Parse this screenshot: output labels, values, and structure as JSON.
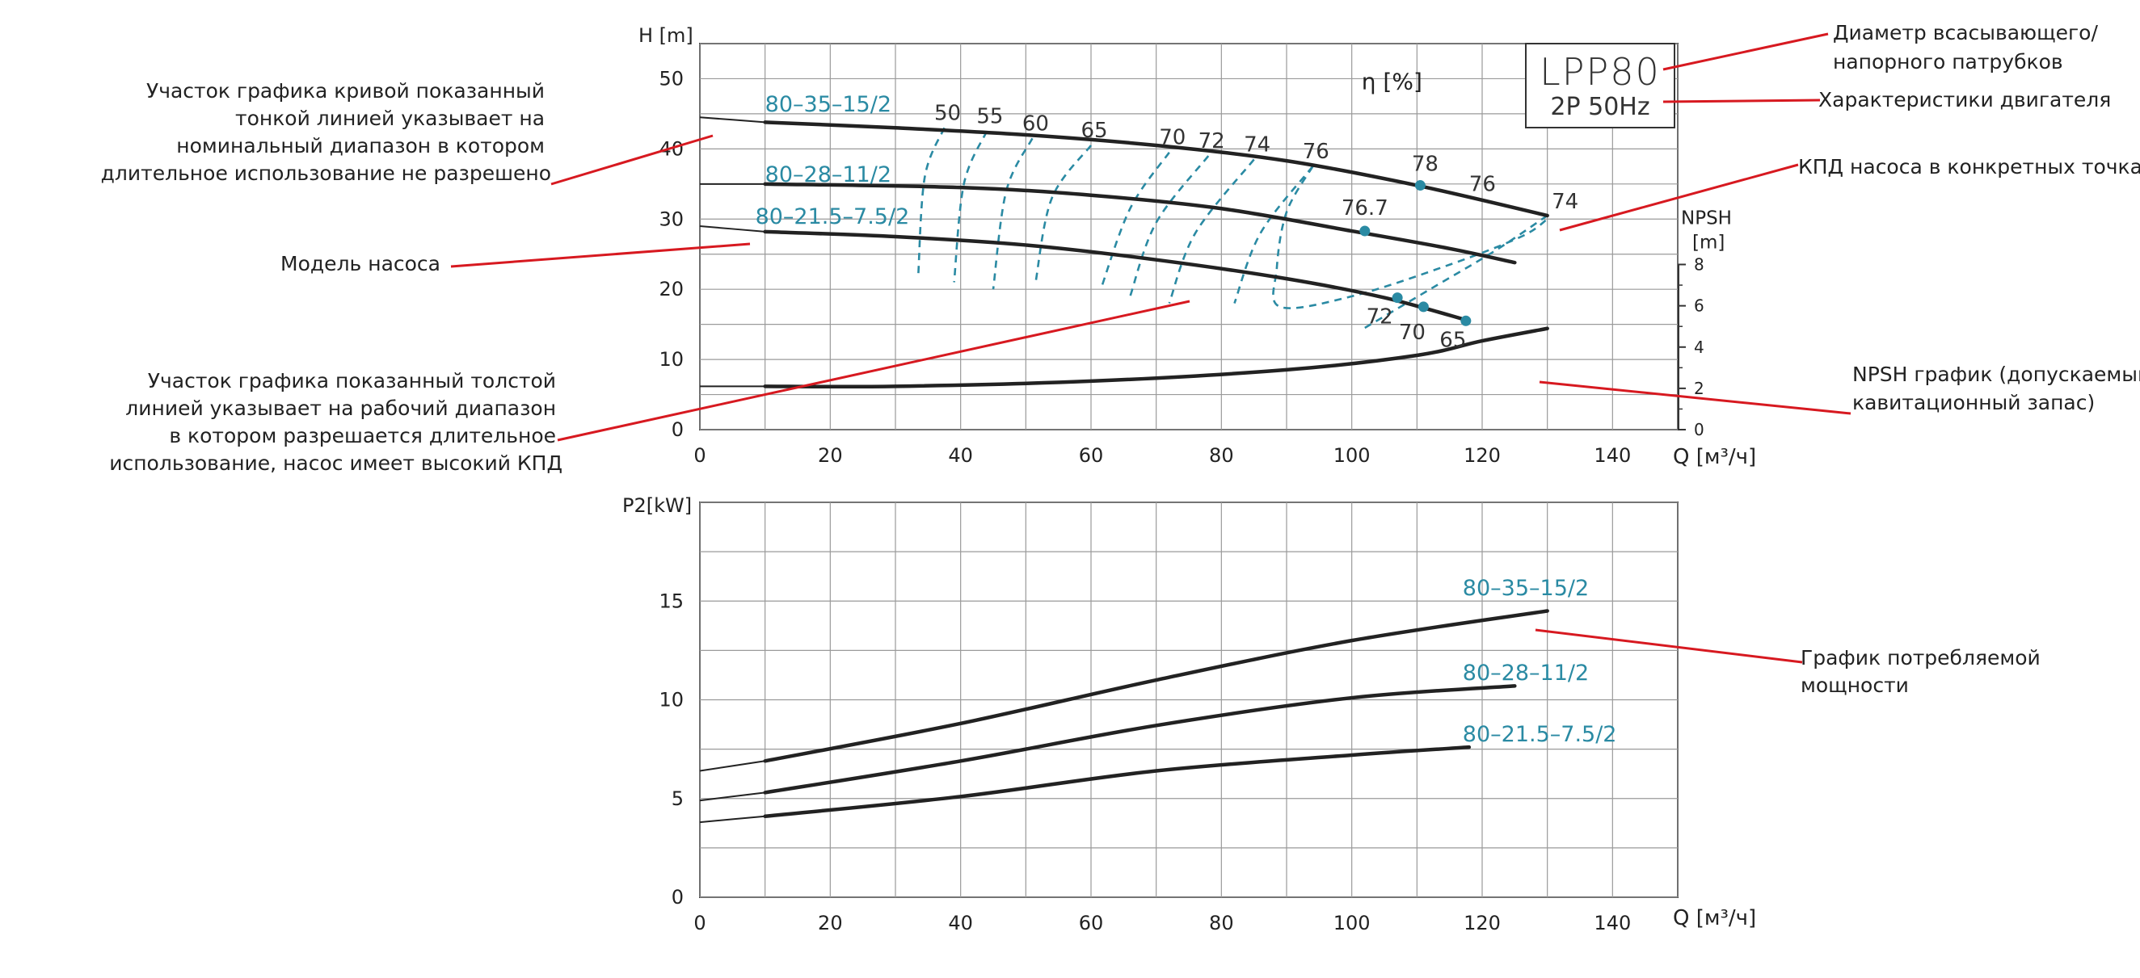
{
  "colors": {
    "curve": "#222222",
    "grid": "#9a9a9a",
    "teal": "#2a8aa3",
    "annotation": "#d71920",
    "text": "#222222"
  },
  "model_box": {
    "model": "LPP80",
    "motor": "2P  50Hz"
  },
  "annotations": {
    "diameter": [
      "Диаметр всасывающего/",
      "напорного патрубков"
    ],
    "motor": [
      "Характеристики двигателя"
    ],
    "kpd_points": [
      "КПД насоса в конкретных точках"
    ],
    "npsh_graph": [
      "NPSH график (допускаемый",
      "кавитационный запас)"
    ],
    "thin_line": [
      "Участок графика кривой показанный",
      "тонкой линией указывает на",
      "номинальный диапазон в котором",
      "длительное использование не разрешено"
    ],
    "pump_model": [
      "Модель насоса"
    ],
    "thick_line": [
      "Участок графика показанный толстой",
      "линией указывает на рабочий диапазон",
      "в котором разрешается длительное",
      "использование, насос имеет высокий КПД"
    ],
    "power_graph": [
      "График потребляемой",
      "мощности"
    ]
  },
  "chart_data": [
    {
      "type": "line",
      "title": "",
      "xlabel": "Q [м³/ч]",
      "ylabel": "H [m]",
      "y2label": "NPSH [m]",
      "xlim": [
        0,
        150
      ],
      "ylim": [
        0,
        55
      ],
      "y2lim": [
        0,
        8
      ],
      "grid": true,
      "x_ticks": [
        "0",
        "20",
        "40",
        "60",
        "80",
        "100",
        "120",
        "140"
      ],
      "y_ticks": [
        "0",
        "10",
        "20",
        "30",
        "40",
        "50"
      ],
      "y2_ticks": [
        "0",
        "2",
        "4",
        "6",
        "8"
      ],
      "efficiency_label": "η [%]",
      "series": [
        {
          "name": "80–35–15/2",
          "thin": [
            [
              0,
              44.5
            ],
            [
              10,
              43.8
            ]
          ],
          "thick": [
            [
              10,
              43.8
            ],
            [
              30,
              43
            ],
            [
              50,
              42
            ],
            [
              70,
              40.5
            ],
            [
              90,
              38.3
            ],
            [
              110,
              34.8
            ],
            [
              130,
              30.5
            ]
          ]
        },
        {
          "name": "80–28–11/2",
          "thin": [
            [
              0,
              35
            ],
            [
              10,
              35
            ]
          ],
          "thick": [
            [
              10,
              35
            ],
            [
              40,
              34.5
            ],
            [
              60,
              33.4
            ],
            [
              80,
              31.5
            ],
            [
              100,
              28.3
            ],
            [
              115,
              25.8
            ],
            [
              125,
              23.8
            ]
          ]
        },
        {
          "name": "80–21.5–7.5/2",
          "thin": [
            [
              0,
              29
            ],
            [
              10,
              28.2
            ]
          ],
          "thick": [
            [
              10,
              28.2
            ],
            [
              30,
              27.5
            ],
            [
              50,
              26.3
            ],
            [
              70,
              24.2
            ],
            [
              90,
              21.5
            ],
            [
              105,
              18.8
            ],
            [
              118,
              15.5
            ]
          ]
        }
      ],
      "npsh": {
        "name": "NPSH",
        "thin": [
          [
            0,
            2.1
          ],
          [
            10,
            2.1
          ]
        ],
        "thick": [
          [
            10,
            2.1
          ],
          [
            30,
            2.1
          ],
          [
            60,
            2.35
          ],
          [
            90,
            2.9
          ],
          [
            110,
            3.6
          ],
          [
            120,
            4.3
          ],
          [
            130,
            4.9
          ]
        ]
      },
      "efficiency_lines": [
        {
          "label": "50",
          "points": [
            [
              37.5,
              43
            ],
            [
              34.5,
              36
            ],
            [
              33.5,
              22
            ]
          ]
        },
        {
          "label": "55",
          "points": [
            [
              44,
              42.5
            ],
            [
              40.5,
              35
            ],
            [
              39,
              21
            ]
          ]
        },
        {
          "label": "60",
          "points": [
            [
              51,
              41.5
            ],
            [
              47,
              34
            ],
            [
              45,
              20
            ]
          ]
        },
        {
          "label": "65",
          "points": [
            [
              60,
              40.5
            ],
            [
              54,
              33
            ],
            [
              51.5,
              21
            ]
          ]
        },
        {
          "label": "70",
          "points": [
            [
              72,
              39.5
            ],
            [
              66,
              31.5
            ],
            [
              61.5,
              20
            ]
          ]
        },
        {
          "label": "72",
          "points": [
            [
              78,
              39
            ],
            [
              70,
              29.5
            ],
            [
              66,
              19
            ]
          ]
        },
        {
          "label": "74",
          "points": [
            [
              85,
              38.5
            ],
            [
              76,
              28
            ],
            [
              72,
              18
            ]
          ]
        },
        {
          "label": "76",
          "points": [
            [
              94,
              37.5
            ],
            [
              86,
              28
            ],
            [
              82,
              18
            ]
          ]
        },
        {
          "label": "",
          "points": [
            [
              94,
              37.5
            ],
            [
              90,
              31
            ],
            [
              88.5,
              23
            ],
            [
              89,
              17.5
            ],
            [
              100,
              19
            ],
            [
              115,
              23.5
            ],
            [
              126,
              27.5
            ],
            [
              130,
              30
            ]
          ]
        },
        {
          "label": "",
          "points": [
            [
              102,
              14.5
            ],
            [
              112,
              20
            ],
            [
              122,
              25.5
            ],
            [
              130,
              30.5
            ]
          ]
        }
      ],
      "efficiency_points": [
        {
          "label": "78",
          "x": 110.5,
          "y": 34.8
        },
        {
          "label": "76.7",
          "x": 102,
          "y": 28.3
        },
        {
          "label": "72",
          "x": 107,
          "y": 18.8
        },
        {
          "label": "70",
          "x": 111,
          "y": 17.5
        },
        {
          "label": "65",
          "x": 117.5,
          "y": 15.5
        }
      ],
      "extra_labels": [
        {
          "label": "76",
          "x": 125
        },
        {
          "label": "74",
          "x": 130
        }
      ]
    },
    {
      "type": "line",
      "title": "",
      "xlabel": "Q [м³/ч]",
      "ylabel": "P2[kW]",
      "xlim": [
        0,
        150
      ],
      "ylim": [
        0,
        20
      ],
      "grid": true,
      "x_ticks": [
        "0",
        "20",
        "40",
        "60",
        "80",
        "100",
        "120",
        "140"
      ],
      "y_ticks": [
        "0",
        "5",
        "10",
        "15"
      ],
      "series": [
        {
          "name": "80–35–15/2",
          "thin": [
            [
              0,
              6.4
            ],
            [
              10,
              6.9
            ]
          ],
          "thick": [
            [
              10,
              6.9
            ],
            [
              40,
              8.8
            ],
            [
              70,
              11
            ],
            [
              100,
              13
            ],
            [
              130,
              14.5
            ]
          ]
        },
        {
          "name": "80–28–11/2",
          "thin": [
            [
              0,
              4.9
            ],
            [
              10,
              5.3
            ]
          ],
          "thick": [
            [
              10,
              5.3
            ],
            [
              40,
              6.9
            ],
            [
              70,
              8.7
            ],
            [
              100,
              10.1
            ],
            [
              125,
              10.7
            ]
          ]
        },
        {
          "name": "80–21.5–7.5/2",
          "thin": [
            [
              0,
              3.8
            ],
            [
              10,
              4.1
            ]
          ],
          "thick": [
            [
              10,
              4.1
            ],
            [
              40,
              5.1
            ],
            [
              70,
              6.4
            ],
            [
              100,
              7.2
            ],
            [
              118,
              7.6
            ]
          ]
        }
      ]
    }
  ]
}
